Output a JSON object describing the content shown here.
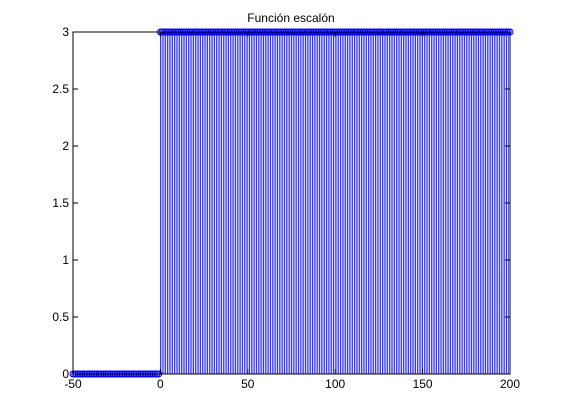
{
  "chart_data": {
    "type": "stem",
    "title": "Función escalón",
    "xlabel": "",
    "ylabel": "",
    "xlim": [
      -50,
      200
    ],
    "ylim": [
      0,
      3
    ],
    "x_ticks": [
      -50,
      0,
      50,
      100,
      150,
      200
    ],
    "y_ticks": [
      0,
      0.5,
      1,
      1.5,
      2,
      2.5,
      3
    ],
    "x_tick_labels": [
      "-50",
      "0",
      "50",
      "100",
      "150",
      "200"
    ],
    "y_tick_labels": [
      "0",
      "0.5",
      "1",
      "1.5",
      "2",
      "2.5",
      "3"
    ],
    "grid": false,
    "series": [
      {
        "marker": "circle",
        "color": "#0000ff",
        "segments": [
          {
            "x_start": -50,
            "x_end": -1,
            "x_step": 1,
            "y": 0
          },
          {
            "x_start": 0,
            "x_end": 200,
            "x_step": 1,
            "y": 3
          }
        ]
      }
    ],
    "box_color": "#000000"
  }
}
